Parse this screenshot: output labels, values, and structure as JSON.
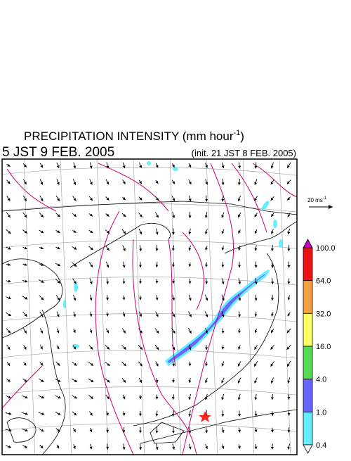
{
  "header": {
    "title": "PRECIPITATION INTENSITY (mm hour",
    "title_superscript": "-1",
    "title_end": ")",
    "valid_time": "5 JST 9 FEB. 2005",
    "init_time": "(init. 21 JST 8 FEB. 2005)"
  },
  "reference_vector": {
    "label": "20 ms",
    "label_superscript": "-1"
  },
  "colorbar": {
    "labels": [
      "100.0",
      "64.0",
      "32.0",
      "16.0",
      "4.0",
      "1.0",
      "0.4"
    ],
    "colors": [
      "#cc00cc",
      "#ee1111",
      "#f5a040",
      "#ffff66",
      "#55dd55",
      "#6666ff",
      "#66eeff",
      "#ffffff"
    ]
  }
}
